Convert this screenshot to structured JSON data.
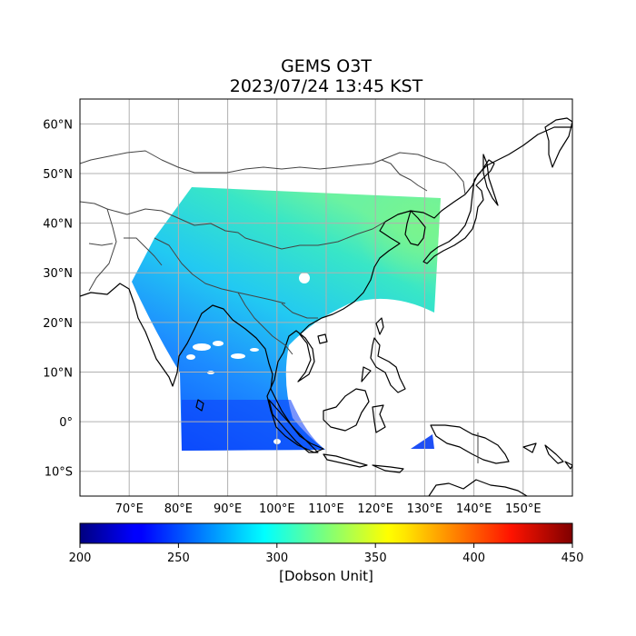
{
  "title": {
    "line1": "GEMS O3T",
    "line2": "2023/07/24 13:45 KST"
  },
  "map": {
    "extent": {
      "lon_min": 60,
      "lon_max": 160,
      "lat_min": -15,
      "lat_max": 65
    },
    "grid": true,
    "lon_ticks": [
      {
        "value": 70,
        "label": "70°E"
      },
      {
        "value": 80,
        "label": "80°E"
      },
      {
        "value": 90,
        "label": "90°E"
      },
      {
        "value": 100,
        "label": "100°E"
      },
      {
        "value": 110,
        "label": "110°E"
      },
      {
        "value": 120,
        "label": "120°E"
      },
      {
        "value": 130,
        "label": "130°E"
      },
      {
        "value": 140,
        "label": "140°E"
      },
      {
        "value": 150,
        "label": "150°E"
      }
    ],
    "lat_ticks": [
      {
        "value": 60,
        "label": "60°N"
      },
      {
        "value": 50,
        "label": "50°N"
      },
      {
        "value": 40,
        "label": "40°N"
      },
      {
        "value": 30,
        "label": "30°N"
      },
      {
        "value": 20,
        "label": "20°N"
      },
      {
        "value": 10,
        "label": "10°N"
      },
      {
        "value": 0,
        "label": "0°"
      },
      {
        "value": -10,
        "label": "10°S"
      }
    ],
    "colors": {
      "grid": "#b0b0b0",
      "coast": "#000000",
      "border": "#444444"
    }
  },
  "colorbar": {
    "min": 200,
    "max": 450,
    "ticks": [
      "200",
      "250",
      "300",
      "350",
      "400",
      "450"
    ],
    "label": "[Dobson Unit]",
    "colormap": "jet"
  }
}
